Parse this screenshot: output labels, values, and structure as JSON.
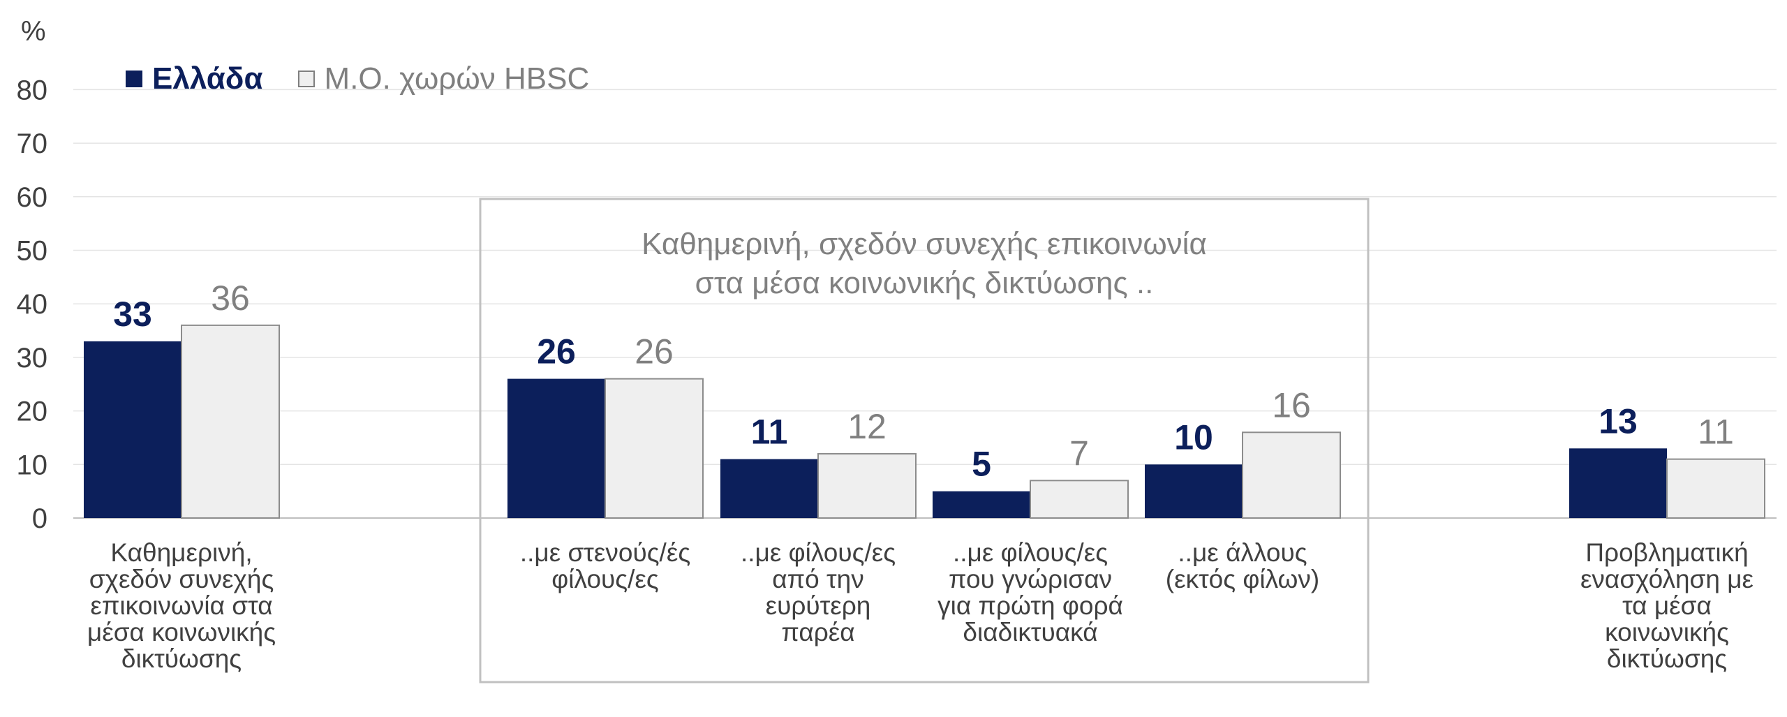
{
  "colors": {
    "greece": "#0c1f5b",
    "hbsc": "#efefef",
    "hbsc_border": "#8c8c8c",
    "grid": "#e4e4e4",
    "box": "#c0c0c0",
    "text": "#404040",
    "avg_label": "#808080"
  },
  "legend": [
    {
      "label": "Ελλάδα",
      "color": "#0c1f5b"
    },
    {
      "label": "Μ.Ο. χωρών HBSC",
      "color": "#efefef"
    }
  ],
  "box_title": [
    "Καθημερινή, σχεδόν συνεχής επικοινωνία",
    "στα μέσα κοινωνικής δικτύωσης .."
  ],
  "chart_data": {
    "type": "bar",
    "ylabel": "%",
    "ylim": [
      0,
      80
    ],
    "yticks": [
      0,
      10,
      20,
      30,
      40,
      50,
      60,
      70,
      80
    ],
    "grid": true,
    "legend_position": "top-left",
    "categories": [
      [
        "Καθημερινή,",
        "σχεδόν συνεχής",
        "επικοινωνία στα",
        "μέσα κοινωνικής",
        "δικτύωσης"
      ],
      [
        "..με στενούς/ές",
        "φίλους/ες"
      ],
      [
        "..με φίλους/ες",
        "από την",
        "ευρύτερη",
        "παρέα"
      ],
      [
        "..με φίλους/ες",
        "που γνώρισαν",
        "για πρώτη φορά",
        "διαδικτυακά"
      ],
      [
        "..με άλλους",
        "(εκτός φίλων)"
      ],
      [
        "Προβληματική",
        "ενασχόληση με",
        "τα μέσα",
        "κοινωνικής",
        "δικτύωσης"
      ]
    ],
    "series": [
      {
        "name": "Ελλάδα",
        "values": [
          33,
          26,
          11,
          5,
          10,
          13
        ]
      },
      {
        "name": "Μ.Ο. χωρών HBSC",
        "values": [
          36,
          26,
          12,
          7,
          16,
          11
        ]
      }
    ]
  }
}
